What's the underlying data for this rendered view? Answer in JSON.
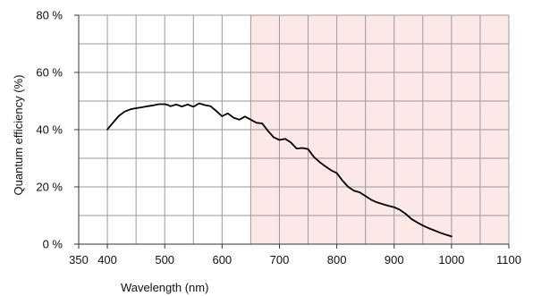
{
  "chart_data": {
    "type": "line",
    "title": "",
    "xlabel": "Wavelength (nm)",
    "ylabel": "Quantum efficiency (%)",
    "xlim": [
      350,
      1100
    ],
    "ylim": [
      0,
      80
    ],
    "x_ticks": [
      350,
      400,
      500,
      600,
      700,
      800,
      900,
      1000,
      1100
    ],
    "x_tick_labels": [
      "350",
      "400",
      "500",
      "600",
      "700",
      "800",
      "900",
      "1000",
      "1100"
    ],
    "y_ticks": [
      0,
      20,
      40,
      60,
      80
    ],
    "y_tick_labels": [
      "0 %",
      "20 %",
      "40 %",
      "60 %",
      "80 %"
    ],
    "x_grid": [
      350,
      400,
      450,
      500,
      550,
      600,
      650,
      700,
      750,
      800,
      850,
      900,
      950,
      1000,
      1050,
      1100
    ],
    "y_grid": [
      0,
      10,
      20,
      30,
      40,
      50,
      60,
      70,
      80
    ],
    "grid": true,
    "legend": "none",
    "shaded_region": {
      "x_start": 650,
      "x_end": 1100,
      "color": "#fde8e8"
    },
    "colors": {
      "line": "#000000",
      "grid": "#9a9a9a",
      "axis": "#333333"
    },
    "series": [
      {
        "x": [
          400,
          410,
          420,
          430,
          440,
          450,
          460,
          470,
          480,
          490,
          500,
          505,
          510,
          520,
          530,
          540,
          550,
          560,
          570,
          580,
          590,
          600,
          610,
          620,
          630,
          640,
          650,
          660,
          670,
          680,
          690,
          700,
          710,
          720,
          730,
          740,
          750,
          760,
          770,
          780,
          790,
          800,
          810,
          820,
          830,
          840,
          850,
          860,
          870,
          880,
          890,
          900,
          910,
          920,
          930,
          940,
          950,
          960,
          970,
          980,
          990,
          1000
        ],
        "y": [
          40.1,
          42.5,
          44.8,
          46.3,
          47.1,
          47.5,
          47.8,
          48.2,
          48.5,
          48.9,
          48.9,
          48.7,
          48.2,
          48.8,
          48.1,
          48.8,
          48.0,
          49.2,
          48.6,
          48.2,
          46.5,
          44.7,
          45.7,
          44.2,
          43.5,
          44.6,
          43.5,
          42.4,
          42.2,
          39.6,
          37.3,
          36.4,
          36.8,
          35.5,
          33.4,
          33.6,
          33.2,
          30.5,
          28.7,
          27.2,
          25.8,
          24.8,
          22.2,
          20.0,
          18.7,
          18.1,
          16.8,
          15.5,
          14.6,
          14.0,
          13.4,
          12.9,
          12.0,
          10.6,
          8.8,
          7.6,
          6.5,
          5.6,
          4.8,
          4.0,
          3.3,
          2.7
        ]
      }
    ]
  }
}
